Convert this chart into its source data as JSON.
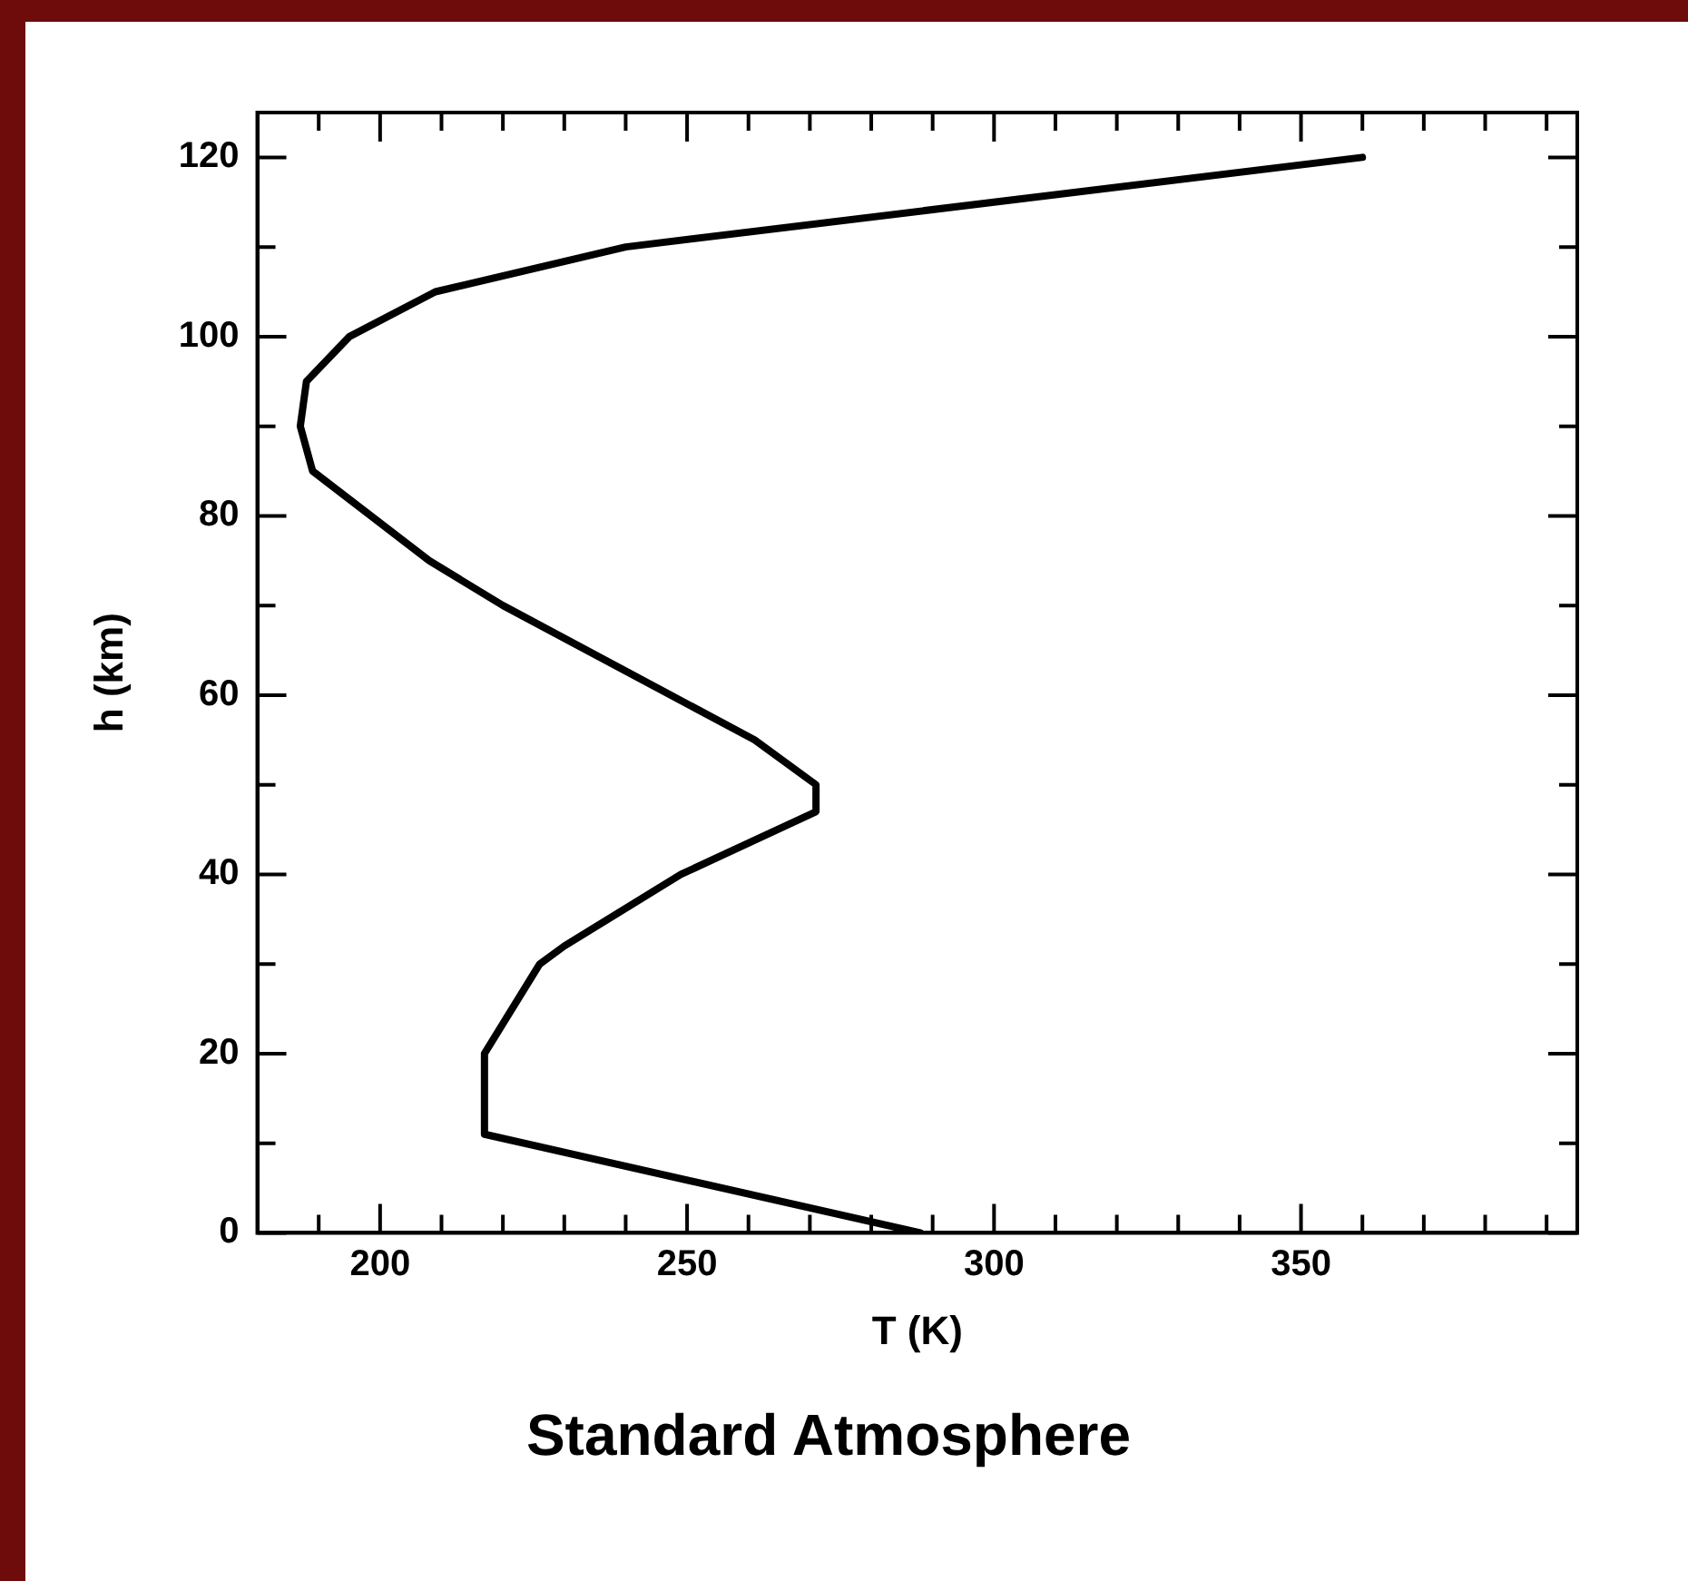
{
  "chart_data": {
    "type": "line",
    "title": "Standard Atmosphere",
    "xlabel": "T (K)",
    "ylabel": "h (km)",
    "x": [
      288,
      217,
      217,
      226,
      230,
      249,
      271,
      271,
      261,
      220,
      208,
      189,
      187,
      188,
      195,
      209,
      240,
      360
    ],
    "series": [
      {
        "color": "#000000",
        "values": [
          0,
          11,
          20,
          30,
          32,
          40,
          47,
          50,
          55,
          70,
          75,
          85,
          90,
          95,
          100,
          105,
          110,
          120
        ]
      }
    ],
    "xlim": [
      180,
      395
    ],
    "xticks": [
      {
        "value": 190,
        "label": null
      },
      200,
      {
        "value": 210,
        "label": null
      },
      {
        "value": 220,
        "label": null
      },
      {
        "value": 230,
        "label": null
      },
      {
        "value": 240,
        "label": null
      },
      250,
      {
        "value": 260,
        "label": null
      },
      {
        "value": 270,
        "label": null
      },
      {
        "value": 280,
        "label": null
      },
      {
        "value": 290,
        "label": null
      },
      300,
      {
        "value": 310,
        "label": null
      },
      {
        "value": 320,
        "label": null
      },
      {
        "value": 330,
        "label": null
      },
      {
        "value": 340,
        "label": null
      },
      350,
      {
        "value": 360,
        "label": null
      },
      {
        "value": 370,
        "label": null
      },
      {
        "value": 380,
        "label": null
      },
      {
        "value": 390,
        "label": null
      }
    ],
    "ylim": [
      0,
      125
    ],
    "yticks": [
      0,
      {
        "value": 10,
        "label": null
      },
      20,
      {
        "value": 30,
        "label": null
      },
      40,
      {
        "value": 50,
        "label": null
      },
      60,
      {
        "value": 70,
        "label": null
      },
      80,
      {
        "value": 90,
        "label": null
      },
      100,
      {
        "value": 110,
        "label": null
      },
      120
    ]
  }
}
